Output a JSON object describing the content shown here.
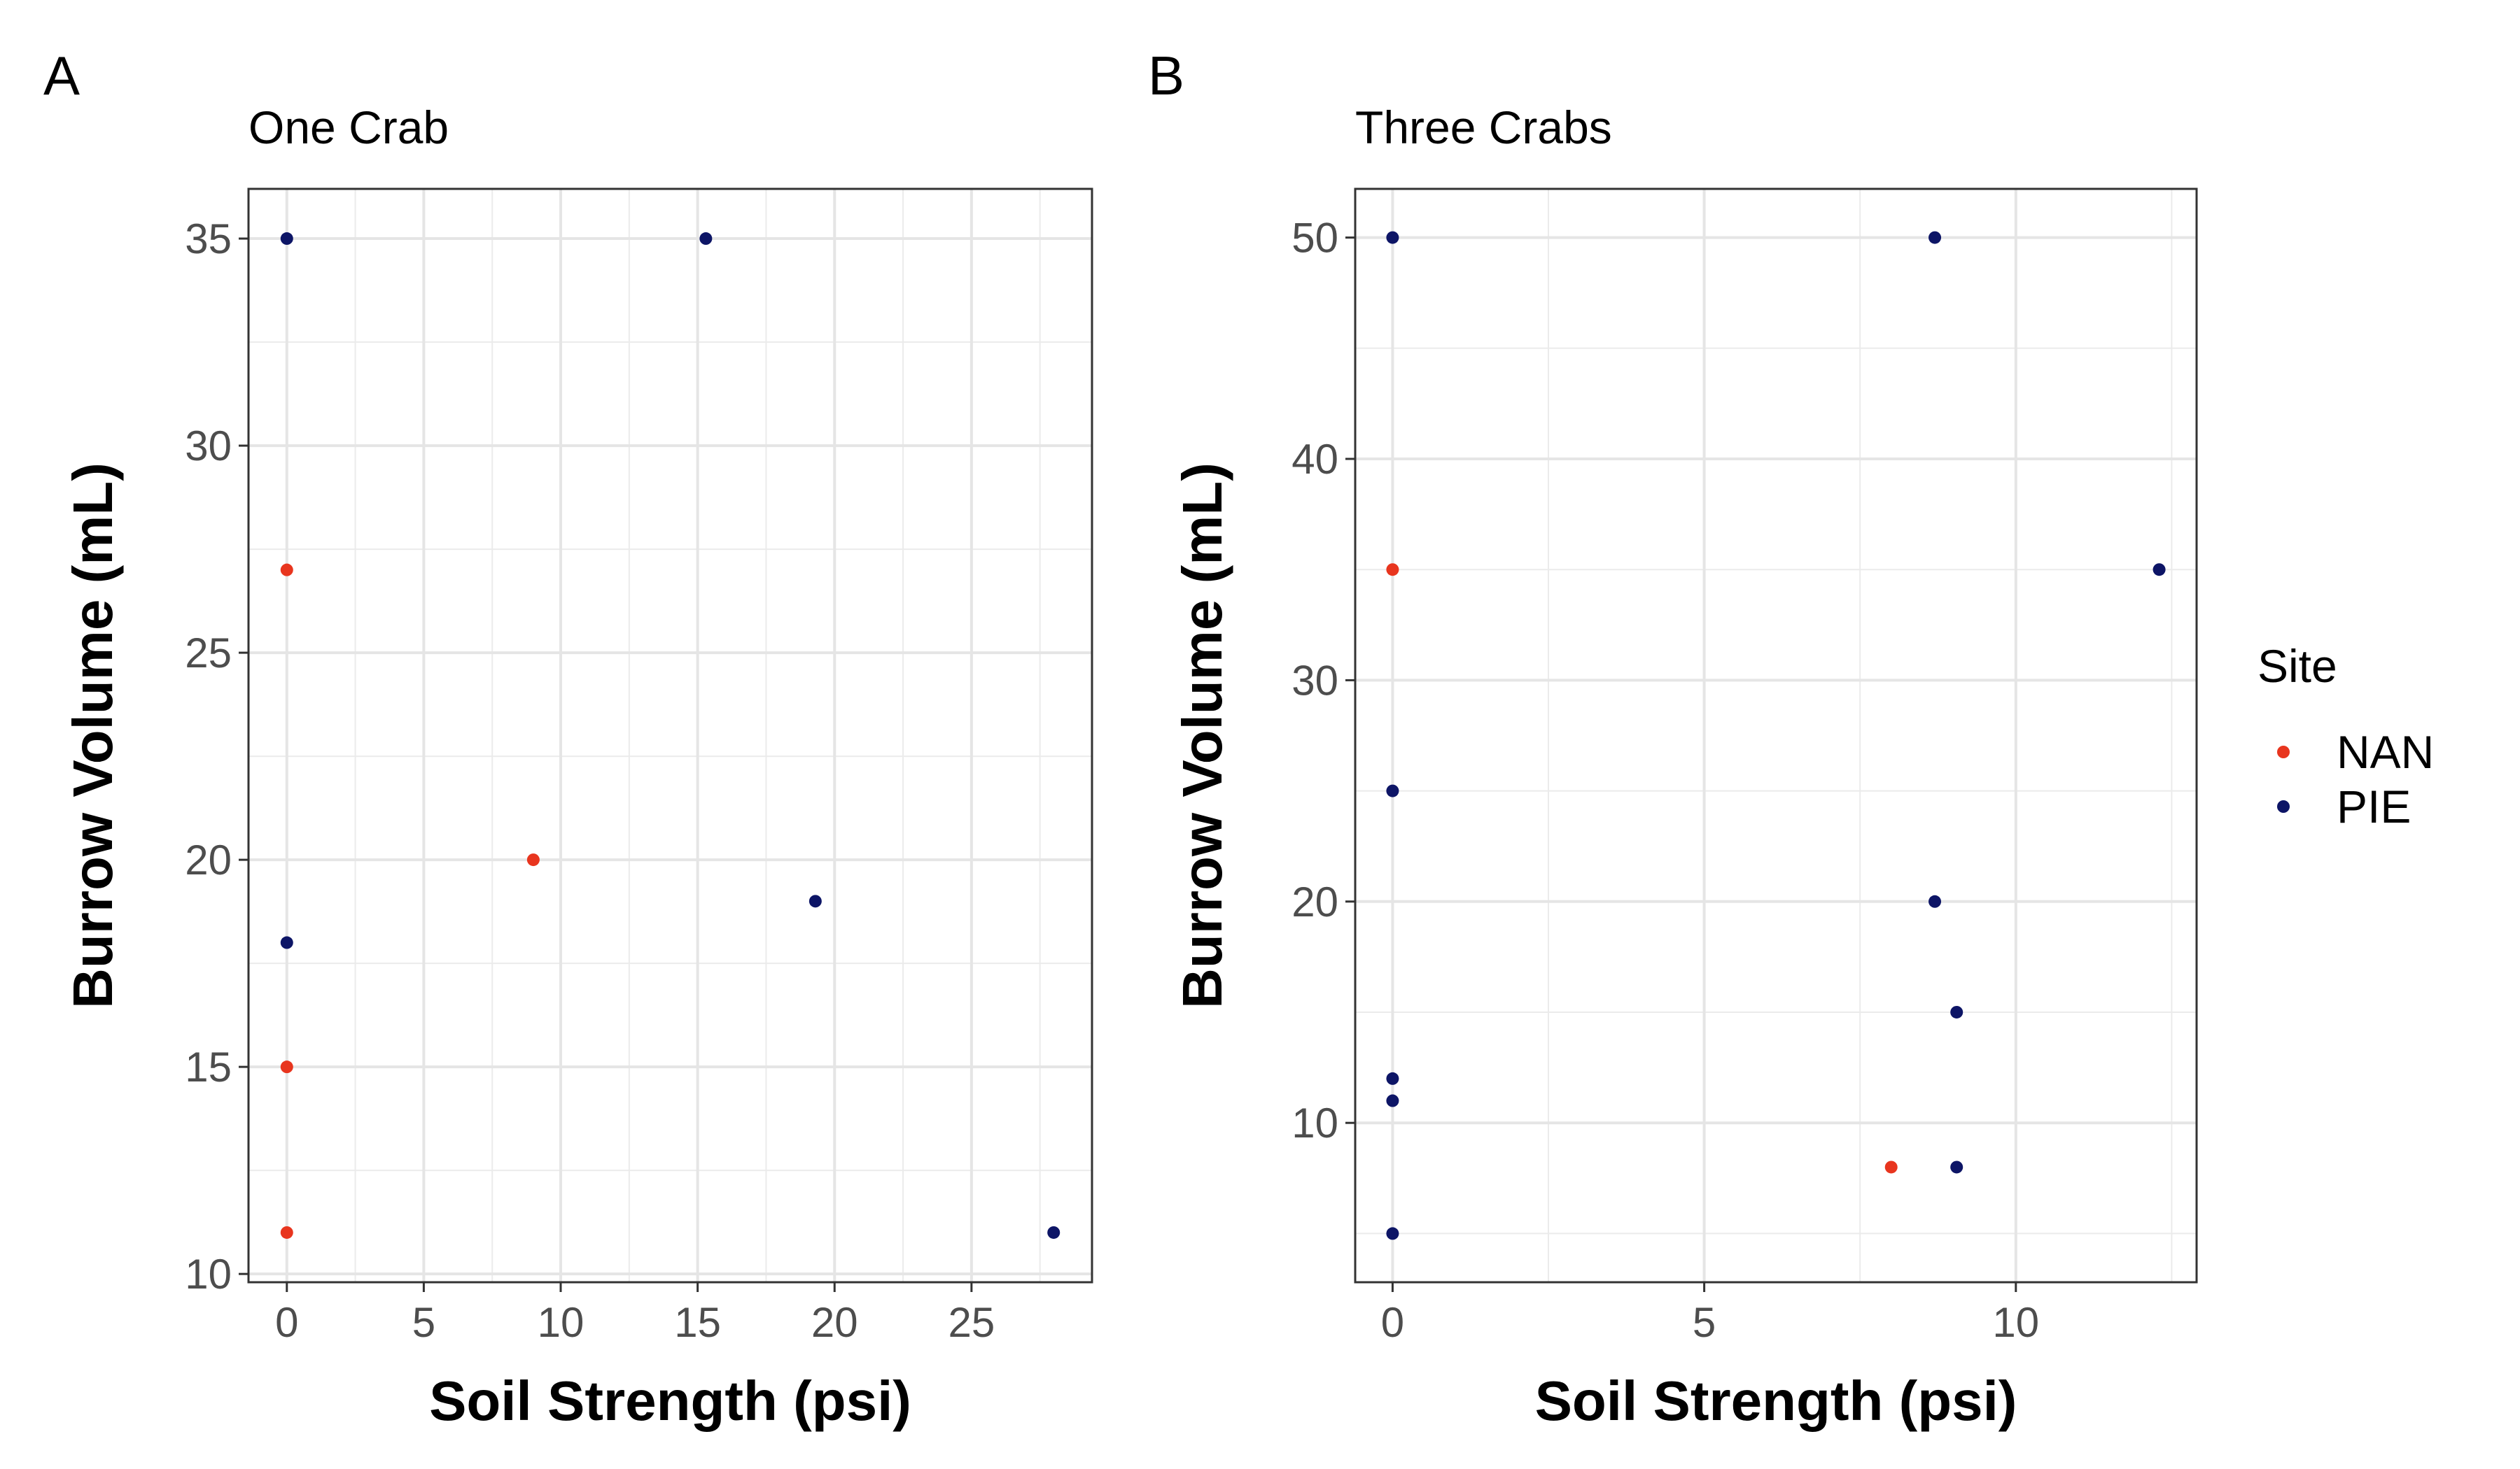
{
  "legend": {
    "title": "Site",
    "entries": [
      {
        "label": "NAN",
        "color": "#e8351e"
      },
      {
        "label": "PIE",
        "color": "#0d1566"
      }
    ]
  },
  "chart_data": [
    {
      "type": "scatter",
      "panel_label": "A",
      "title": "One Crab",
      "xlabel": "Soil Strength (psi)",
      "ylabel": "Burrow Volume (mL)",
      "xlim": [
        -1.4,
        29.4
      ],
      "ylim": [
        9.8,
        36.2
      ],
      "xticks": [
        0,
        5,
        10,
        15,
        20,
        25
      ],
      "yticks": [
        10,
        15,
        20,
        25,
        30,
        35
      ],
      "grid": true,
      "series": [
        {
          "name": "NAN",
          "color": "#e8351e",
          "points": [
            [
              0,
              27
            ],
            [
              0,
              15
            ],
            [
              0,
              11
            ],
            [
              9,
              20
            ]
          ]
        },
        {
          "name": "PIE",
          "color": "#0d1566",
          "points": [
            [
              0,
              35
            ],
            [
              15.3,
              35
            ],
            [
              0,
              18
            ],
            [
              19.3,
              19
            ],
            [
              28,
              11
            ]
          ]
        }
      ]
    },
    {
      "type": "scatter",
      "panel_label": "B",
      "title": "Three Crabs",
      "xlabel": "Soil Strength (psi)",
      "ylabel": "Burrow Volume (mL)",
      "xlim": [
        -0.6,
        12.9
      ],
      "ylim": [
        2.8,
        52.2
      ],
      "xticks": [
        0,
        5,
        10
      ],
      "yticks": [
        10,
        20,
        30,
        40,
        50
      ],
      "grid": true,
      "series": [
        {
          "name": "NAN",
          "color": "#e8351e",
          "points": [
            [
              0,
              35
            ],
            [
              8,
              8
            ]
          ]
        },
        {
          "name": "PIE",
          "color": "#0d1566",
          "points": [
            [
              0,
              50
            ],
            [
              8.7,
              50
            ],
            [
              12.3,
              35
            ],
            [
              0,
              25
            ],
            [
              8.7,
              20
            ],
            [
              9.05,
              15
            ],
            [
              0,
              12
            ],
            [
              0,
              11
            ],
            [
              9.05,
              8
            ],
            [
              0,
              5
            ]
          ]
        }
      ]
    }
  ]
}
